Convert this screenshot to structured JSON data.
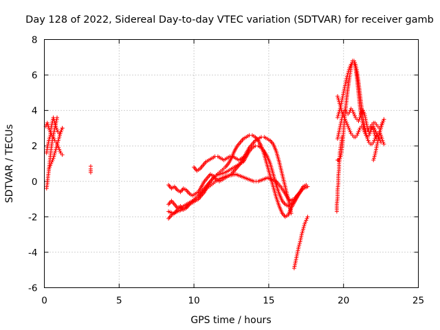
{
  "chart_data": {
    "type": "scatter",
    "title": "Day 128 of 2022, Sidereal Day-to-day VTEC variation (SDTVAR) for receiver gamb",
    "xlabel": "GPS time / hours",
    "ylabel": "SDTVAR / TECUs",
    "xlim": [
      0,
      25
    ],
    "ylim": [
      -6,
      8
    ],
    "xticks": [
      "0",
      "5",
      "10",
      "15",
      "20",
      "25"
    ],
    "yticks": [
      "-6",
      "-4",
      "-2",
      "0",
      "2",
      "4",
      "6",
      "8"
    ],
    "grid": true,
    "marker": "plus",
    "color": "#ff0000",
    "series": [
      {
        "name": "a1",
        "x": [
          0.15,
          0.2,
          0.25,
          0.3,
          0.35,
          0.4,
          0.45,
          0.5,
          0.55,
          0.6,
          0.65,
          0.7,
          0.75,
          0.8,
          0.85
        ],
        "y": [
          -0.4,
          -0.1,
          0.3,
          0.6,
          1.0,
          1.4,
          1.8,
          2.1,
          2.4,
          2.6,
          2.8,
          3.0,
          3.2,
          3.4,
          3.6
        ]
      },
      {
        "name": "a2",
        "x": [
          0.15,
          0.2,
          0.3,
          0.4,
          0.45,
          0.5,
          0.6,
          0.7,
          0.8,
          0.9,
          1.0,
          1.1,
          1.2
        ],
        "y": [
          1.6,
          1.9,
          2.3,
          2.6,
          3.0,
          3.2,
          3.6,
          3.3,
          3.0,
          2.8,
          2.7,
          2.8,
          3.0
        ]
      },
      {
        "name": "a3",
        "x": [
          0.1,
          0.2,
          0.3,
          0.4,
          0.5,
          0.6,
          0.7,
          0.8,
          0.9,
          1.0,
          1.1,
          1.2
        ],
        "y": [
          3.1,
          3.3,
          3.0,
          2.8,
          2.6,
          2.5,
          2.3,
          2.2,
          2.0,
          1.8,
          1.6,
          1.5
        ]
      },
      {
        "name": "a4",
        "x": [
          0.3,
          0.4,
          0.5,
          0.6,
          0.7,
          0.8,
          0.9,
          1.0,
          1.1,
          1.2
        ],
        "y": [
          0.7,
          0.9,
          1.1,
          1.3,
          1.6,
          1.9,
          2.2,
          2.5,
          2.8,
          3.0
        ]
      },
      {
        "name": "b",
        "x": [
          3.1,
          3.1,
          3.1
        ],
        "y": [
          0.5,
          0.7,
          0.85
        ]
      },
      {
        "name": "c1",
        "x": [
          8.3,
          8.5,
          8.7,
          8.9,
          9.1,
          9.3,
          9.5,
          9.7,
          9.9,
          10.1,
          10.3,
          10.5,
          10.7,
          10.9,
          11.1,
          11.3,
          11.5,
          11.7,
          11.9,
          12.1,
          12.3,
          12.5,
          12.7,
          12.9,
          13.1,
          13.3,
          13.5,
          13.7,
          13.9,
          14.1,
          14.3,
          14.5,
          14.7,
          14.9,
          15.1,
          15.3,
          15.5,
          15.7,
          15.9,
          16.1,
          16.3,
          16.5,
          16.7,
          16.9,
          17.1,
          17.3
        ],
        "y": [
          -2.1,
          -1.9,
          -1.8,
          -1.6,
          -1.5,
          -1.4,
          -1.3,
          -1.2,
          -1.1,
          -0.95,
          -0.8,
          -0.6,
          -0.4,
          -0.2,
          0.0,
          0.2,
          0.35,
          0.5,
          0.65,
          0.8,
          1.0,
          1.3,
          1.7,
          2.0,
          2.2,
          2.4,
          2.5,
          2.6,
          2.6,
          2.5,
          2.3,
          2.0,
          1.5,
          0.9,
          0.3,
          -0.3,
          -0.9,
          -1.4,
          -1.8,
          -2.0,
          -1.9,
          -1.5,
          -1.2,
          -0.9,
          -0.6,
          -0.3
        ]
      },
      {
        "name": "c2",
        "x": [
          8.3,
          8.5,
          8.7,
          8.9,
          9.1,
          9.3,
          9.5,
          9.7,
          9.9,
          10.1,
          10.3,
          10.5,
          10.7,
          10.9,
          11.1,
          11.3,
          11.5,
          11.7,
          11.9,
          12.1,
          12.3,
          12.5,
          12.7,
          12.9,
          13.1,
          13.3,
          13.5,
          13.7,
          13.9,
          14.1,
          14.3,
          14.5,
          14.7,
          14.9,
          15.1,
          15.3,
          15.5,
          15.7,
          15.9,
          16.1,
          16.3,
          16.5,
          16.7,
          16.9,
          17.1,
          17.3,
          17.5
        ],
        "y": [
          -1.3,
          -1.1,
          -1.3,
          -1.5,
          -1.4,
          -1.6,
          -1.5,
          -1.3,
          -1.2,
          -1.1,
          -1.0,
          -0.8,
          -0.6,
          -0.3,
          0.0,
          0.2,
          0.35,
          0.4,
          0.45,
          0.5,
          0.6,
          0.7,
          0.8,
          0.9,
          1.0,
          1.1,
          1.4,
          1.7,
          1.9,
          2.0,
          2.0,
          1.9,
          1.7,
          1.4,
          1.0,
          0.4,
          -0.2,
          -0.7,
          -1.1,
          -1.3,
          -1.4,
          -1.3,
          -1.1,
          -0.8,
          -0.6,
          -0.3,
          -0.2
        ]
      },
      {
        "name": "c3",
        "x": [
          8.3,
          8.5,
          8.7,
          8.9,
          9.1,
          9.3,
          9.5,
          9.7,
          9.9,
          10.1,
          10.3,
          10.5,
          10.7,
          10.9,
          11.1,
          11.3,
          11.5,
          11.7,
          11.9,
          12.1,
          12.3,
          12.5,
          12.7,
          12.9,
          13.1,
          13.3,
          13.5,
          13.7,
          13.9,
          14.1,
          14.3,
          14.5,
          14.7,
          14.9,
          15.1,
          15.3,
          15.5,
          15.7,
          15.9,
          16.1,
          16.3,
          16.5
        ],
        "y": [
          -0.2,
          -0.4,
          -0.3,
          -0.5,
          -0.6,
          -0.4,
          -0.5,
          -0.7,
          -0.8,
          -0.7,
          -0.6,
          -0.3,
          0.0,
          0.2,
          0.4,
          0.3,
          0.1,
          0.0,
          0.1,
          0.2,
          0.3,
          0.4,
          0.6,
          0.8,
          1.0,
          1.3,
          1.6,
          1.9,
          2.1,
          2.3,
          2.4,
          2.5,
          2.5,
          2.4,
          2.3,
          2.1,
          1.7,
          1.1,
          0.4,
          -0.3,
          -1.0,
          -1.8
        ]
      },
      {
        "name": "c4",
        "x": [
          10.0,
          10.2,
          10.4,
          10.6,
          10.8,
          11.0,
          11.2,
          11.4,
          11.6,
          11.8,
          12.0,
          12.2,
          12.4,
          12.6,
          12.8,
          13.0,
          13.2,
          13.4
        ],
        "y": [
          0.8,
          0.6,
          0.7,
          0.9,
          1.1,
          1.2,
          1.3,
          1.4,
          1.4,
          1.3,
          1.2,
          1.3,
          1.4,
          1.4,
          1.3,
          1.2,
          1.3,
          1.4
        ]
      },
      {
        "name": "c5",
        "x": [
          8.3,
          8.6,
          8.9,
          9.2,
          9.5,
          9.8,
          10.1,
          10.4,
          10.7,
          11.0,
          11.3,
          11.6,
          11.9,
          12.2,
          12.5,
          12.8,
          13.1,
          13.4,
          13.7,
          14.0,
          14.3,
          14.6,
          14.9,
          15.2,
          15.5,
          15.8,
          16.1,
          16.4,
          16.7,
          17.0,
          17.3,
          17.6
        ],
        "y": [
          -1.7,
          -1.8,
          -1.7,
          -1.6,
          -1.4,
          -1.2,
          -1.0,
          -0.8,
          -0.5,
          -0.3,
          -0.1,
          0.1,
          0.2,
          0.3,
          0.35,
          0.4,
          0.3,
          0.2,
          0.1,
          0.0,
          0.0,
          0.1,
          0.2,
          0.1,
          0.0,
          -0.3,
          -0.7,
          -1.1,
          -1.0,
          -0.7,
          -0.4,
          -0.3
        ]
      },
      {
        "name": "c6",
        "x": [
          16.7,
          16.8,
          16.9,
          17.0,
          17.1,
          17.2,
          17.3,
          17.4,
          17.5,
          17.6
        ],
        "y": [
          -4.9,
          -4.5,
          -4.1,
          -3.7,
          -3.4,
          -3.0,
          -2.7,
          -2.4,
          -2.2,
          -2.0
        ]
      },
      {
        "name": "d1",
        "x": [
          19.6,
          19.65,
          19.7,
          19.75,
          19.8,
          19.85,
          19.9,
          19.95,
          20.0,
          20.05,
          20.1,
          20.2,
          20.3,
          20.4,
          20.5,
          20.6,
          20.7,
          20.8,
          20.9,
          21.0,
          21.1,
          21.2,
          21.3,
          21.4,
          21.5,
          21.6,
          21.7,
          21.8,
          21.9,
          22.0,
          22.1,
          22.2,
          22.3,
          22.4,
          22.5,
          22.6,
          22.7
        ],
        "y": [
          1.2,
          1.2,
          1.2,
          1.3,
          1.4,
          1.6,
          1.9,
          2.3,
          2.8,
          3.3,
          3.8,
          4.6,
          5.3,
          5.9,
          6.4,
          6.8,
          6.8,
          6.6,
          6.2,
          5.6,
          4.9,
          4.2,
          3.6,
          3.1,
          2.7,
          2.4,
          2.2,
          2.1,
          2.1,
          2.2,
          2.4,
          2.6,
          2.7,
          2.8,
          2.6,
          2.3,
          2.1
        ]
      },
      {
        "name": "d2",
        "x": [
          19.6,
          19.7,
          19.8,
          19.9,
          20.0,
          20.1,
          20.2,
          20.3,
          20.4,
          20.5,
          20.6,
          20.7,
          20.8,
          20.9,
          21.0,
          21.1,
          21.2,
          21.3,
          21.4,
          21.5,
          21.6,
          21.7,
          21.8,
          21.9,
          22.0,
          22.1,
          22.2,
          22.3,
          22.4,
          22.5,
          22.6,
          22.7
        ],
        "y": [
          3.6,
          3.9,
          4.2,
          4.6,
          5.0,
          5.4,
          5.8,
          6.1,
          6.4,
          6.6,
          6.7,
          6.7,
          6.4,
          5.8,
          5.0,
          4.2,
          3.6,
          3.2,
          3.0,
          2.9,
          2.9,
          3.0,
          3.1,
          3.2,
          3.3,
          3.3,
          3.2,
          3.1,
          3.0,
          3.1,
          3.3,
          3.5
        ]
      },
      {
        "name": "d3",
        "x": [
          19.6,
          19.7,
          19.8,
          19.9,
          20.0,
          20.1,
          20.2,
          20.3,
          20.4,
          20.5,
          20.6,
          20.7,
          20.8,
          20.9,
          21.0,
          21.1,
          21.2,
          21.3,
          21.4,
          21.5,
          21.6,
          21.7,
          21.8,
          21.9,
          22.0,
          22.1,
          22.2,
          22.3,
          22.4,
          22.5
        ],
        "y": [
          2.4,
          2.8,
          3.2,
          3.6,
          3.9,
          4.0,
          3.9,
          3.8,
          3.9,
          4.1,
          4.0,
          3.8,
          3.6,
          3.5,
          3.4,
          3.6,
          3.9,
          4.0,
          3.8,
          3.4,
          3.0,
          2.8,
          2.9,
          3.1,
          2.9,
          2.6,
          2.4,
          2.3,
          2.4,
          2.2
        ]
      },
      {
        "name": "d4",
        "x": [
          19.6,
          19.7,
          19.8,
          19.9,
          20.0,
          20.1,
          20.2,
          20.3,
          20.4,
          20.5,
          20.6,
          20.7,
          20.8,
          20.9,
          21.0,
          21.1,
          21.2,
          21.3,
          21.4,
          21.5,
          21.6,
          21.7,
          21.8,
          21.9,
          22.0,
          22.1,
          22.2,
          22.3,
          22.4,
          22.5
        ],
        "y": [
          4.8,
          4.5,
          4.2,
          3.9,
          3.7,
          3.5,
          3.3,
          3.1,
          2.9,
          2.7,
          2.6,
          2.5,
          2.5,
          2.6,
          2.8,
          3.0,
          3.1,
          3.0,
          2.8,
          2.6,
          2.5,
          2.6,
          2.8,
          3.0,
          3.1,
          2.9,
          2.7,
          2.5,
          2.4,
          2.5
        ]
      },
      {
        "name": "d5",
        "x": [
          19.55,
          19.55,
          19.6,
          19.6,
          19.65,
          19.65,
          19.7,
          19.7,
          19.75,
          19.75,
          19.8,
          19.85,
          19.9
        ],
        "y": [
          -1.7,
          -1.3,
          -0.9,
          -0.5,
          -0.1,
          0.3,
          0.7,
          1.0,
          1.3,
          1.6,
          1.9,
          2.2,
          2.5
        ]
      },
      {
        "name": "d6",
        "x": [
          22.0,
          22.1,
          22.2,
          22.3,
          22.4,
          22.5,
          22.6,
          22.7
        ],
        "y": [
          1.2,
          1.5,
          1.9,
          2.3,
          2.7,
          3.0,
          3.3,
          3.5
        ]
      }
    ]
  }
}
